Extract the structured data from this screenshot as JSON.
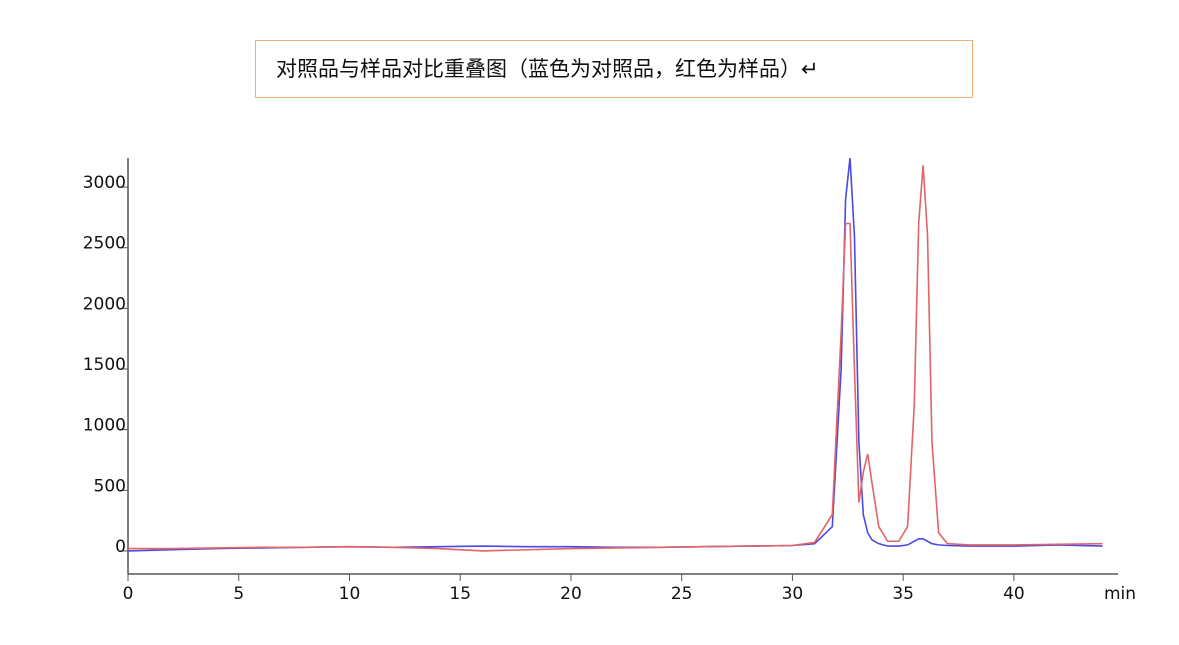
{
  "chart_data": {
    "type": "line",
    "title": "对照品与样品对比重叠图（蓝色为对照品，红色为样品）↵",
    "x_label": "min",
    "x": [
      0,
      2,
      4,
      6,
      8,
      10,
      12,
      14,
      16,
      18,
      20,
      22,
      24,
      26,
      28,
      30,
      31,
      31.8,
      32.2,
      32.4,
      32.6,
      32.8,
      33.0,
      33.2,
      33.4,
      33.6,
      33.9,
      34.3,
      34.8,
      35.2,
      35.5,
      35.7,
      35.9,
      36.1,
      36.3,
      36.6,
      37,
      38,
      40,
      42,
      44
    ],
    "series": [
      {
        "name": "对照品",
        "color": "#4a4ae6",
        "values": [
          0,
          10,
          20,
          25,
          30,
          35,
          30,
          35,
          40,
          35,
          35,
          30,
          30,
          35,
          40,
          45,
          60,
          200,
          1500,
          2900,
          3240,
          2600,
          900,
          300,
          150,
          90,
          60,
          40,
          40,
          50,
          80,
          100,
          100,
          80,
          60,
          50,
          45,
          40,
          40,
          50,
          40
        ]
      },
      {
        "name": "样品",
        "color": "#e36464",
        "values": [
          20,
          20,
          25,
          30,
          30,
          35,
          30,
          20,
          0,
          10,
          20,
          25,
          30,
          35,
          40,
          45,
          70,
          300,
          1800,
          2700,
          2700,
          1500,
          400,
          650,
          800,
          550,
          200,
          80,
          80,
          200,
          1200,
          2700,
          3180,
          2600,
          900,
          150,
          60,
          50,
          50,
          55,
          60
        ]
      }
    ],
    "xlim": [
      0,
      44.7
    ],
    "ylim": [
      -190,
      3240
    ],
    "xticks": [
      0,
      5,
      10,
      15,
      20,
      25,
      30,
      35,
      40
    ],
    "yticks": [
      0,
      500,
      1000,
      1500,
      2000,
      2500,
      3000
    ]
  }
}
